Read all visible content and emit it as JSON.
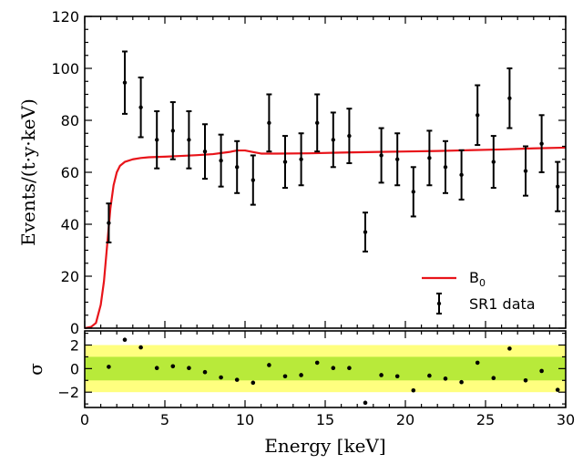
{
  "chart_data": {
    "type": "scatter",
    "xlabel": "Energy [keV]",
    "ylabel": "Events/(t·y·keV)",
    "bottom_ylabel": "σ",
    "xlim": [
      0,
      30
    ],
    "ylim": [
      0,
      120
    ],
    "bottom_ylim": [
      -3.3,
      3.2
    ],
    "xticks": [
      0,
      5,
      10,
      15,
      20,
      25,
      30
    ],
    "xtick_labels": [
      "0",
      "5",
      "10",
      "15",
      "20",
      "25",
      "30"
    ],
    "yticks": [
      0,
      20,
      40,
      60,
      80,
      100,
      120
    ],
    "ytick_labels": [
      "0",
      "20",
      "40",
      "60",
      "80",
      "100",
      "120"
    ],
    "bottom_yticks": [
      -2,
      0,
      2
    ],
    "bottom_ytick_labels": [
      "−2",
      "0",
      "2"
    ],
    "bands": [
      {
        "range": [
          -2,
          2
        ],
        "color": "#ffff7f"
      },
      {
        "range": [
          -1,
          1
        ],
        "color": "#b8ea3a"
      }
    ],
    "legend": {
      "placement": "lower right",
      "model_name": "B",
      "model_name_sub": "0",
      "data_name": "SR1 data"
    },
    "model_color": "#e8141a",
    "model": {
      "name": "B0",
      "x": [
        0.0,
        0.4,
        0.7,
        1.0,
        1.2,
        1.4,
        1.6,
        1.8,
        2.0,
        2.2,
        2.5,
        3.0,
        3.5,
        4.0,
        5.0,
        6.0,
        7.0,
        8.0,
        9.0,
        9.5,
        10.0,
        10.5,
        11.0,
        12.0,
        14.0,
        16.0,
        18.0,
        20.0,
        22.0,
        24.0,
        26.0,
        28.0,
        30.0
      ],
      "y": [
        0.0,
        0.5,
        2.0,
        9.0,
        18.0,
        32.0,
        46.0,
        55.0,
        60.0,
        62.5,
        64.0,
        65.0,
        65.5,
        65.8,
        66.0,
        66.3,
        66.6,
        67.0,
        67.8,
        68.4,
        68.4,
        67.8,
        67.2,
        67.2,
        67.3,
        67.6,
        67.8,
        68.0,
        68.2,
        68.5,
        68.8,
        69.2,
        69.5
      ]
    },
    "data": {
      "name": "SR1 data",
      "x": [
        1.5,
        2.5,
        3.5,
        4.5,
        5.5,
        6.5,
        7.5,
        8.5,
        9.5,
        10.5,
        11.5,
        12.5,
        13.5,
        14.5,
        15.5,
        16.5,
        17.5,
        18.5,
        19.5,
        20.5,
        21.5,
        22.5,
        23.5,
        24.5,
        25.5,
        26.5,
        27.5,
        28.5,
        29.5
      ],
      "y": [
        40.5,
        94.5,
        85.0,
        72.5,
        76.0,
        72.5,
        68.0,
        64.5,
        62.0,
        57.0,
        79.0,
        64.0,
        65.0,
        79.0,
        72.5,
        74.0,
        37.0,
        66.5,
        65.0,
        52.5,
        65.5,
        62.0,
        59.0,
        82.0,
        64.0,
        88.5,
        60.5,
        71.0,
        54.5
      ],
      "err": [
        7.5,
        12.0,
        11.5,
        11.0,
        11.0,
        11.0,
        10.5,
        10.0,
        10.0,
        9.5,
        11.0,
        10.0,
        10.0,
        11.0,
        10.5,
        10.5,
        7.5,
        10.5,
        10.0,
        9.5,
        10.5,
        10.0,
        9.5,
        11.5,
        10.0,
        11.5,
        9.5,
        11.0,
        9.5
      ]
    },
    "residuals": {
      "x": [
        1.5,
        2.5,
        3.5,
        4.5,
        5.5,
        6.5,
        7.5,
        8.5,
        9.5,
        10.5,
        11.5,
        12.5,
        13.5,
        14.5,
        15.5,
        16.5,
        17.5,
        18.5,
        19.5,
        20.5,
        21.5,
        22.5,
        23.5,
        24.5,
        25.5,
        26.5,
        27.5,
        28.5,
        29.5
      ],
      "y": [
        0.15,
        2.45,
        1.8,
        0.05,
        0.2,
        0.05,
        -0.3,
        -0.75,
        -0.95,
        -1.2,
        0.3,
        -0.65,
        -0.55,
        0.5,
        0.05,
        0.05,
        -2.9,
        -0.55,
        -0.65,
        -1.85,
        -0.6,
        -0.85,
        -1.15,
        0.5,
        -0.8,
        1.7,
        -1.0,
        -0.2,
        -1.8
      ]
    }
  }
}
